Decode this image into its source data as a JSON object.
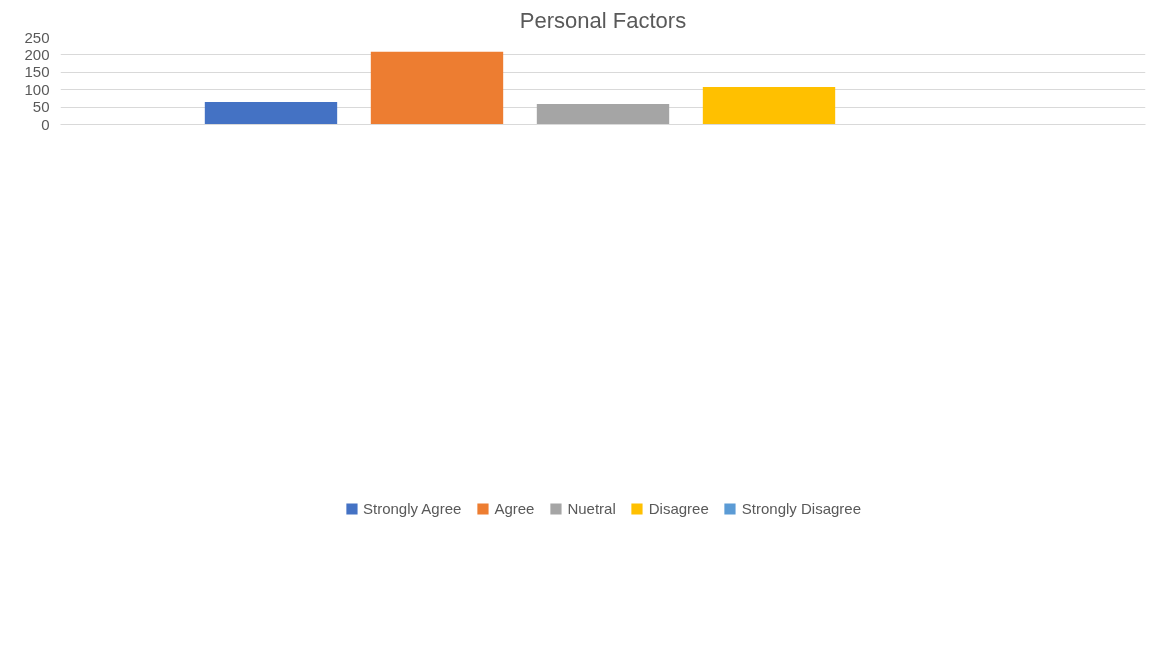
{
  "chart_data": {
    "type": "bar",
    "title": "Personal Factors",
    "categories": [
      null
    ],
    "series": [
      {
        "name": "Strongly Agree",
        "color": "#4472c4",
        "values": [
          65
        ]
      },
      {
        "name": "Agree",
        "color": "#ed7d31",
        "values": [
          209
        ]
      },
      {
        "name": "Nuetral",
        "color": "#a5a5a5",
        "values": [
          59
        ]
      },
      {
        "name": "Disagree",
        "color": "#ffc000",
        "values": [
          108
        ]
      },
      {
        "name": "Strongly Disagree",
        "color": "#5b9bd5",
        "values": [
          0
        ]
      }
    ],
    "ylim": [
      0,
      250
    ],
    "yticks": [
      0,
      50,
      100,
      150,
      200,
      250
    ],
    "grid": "y",
    "legend": "bottom",
    "tick_labels": "y"
  }
}
